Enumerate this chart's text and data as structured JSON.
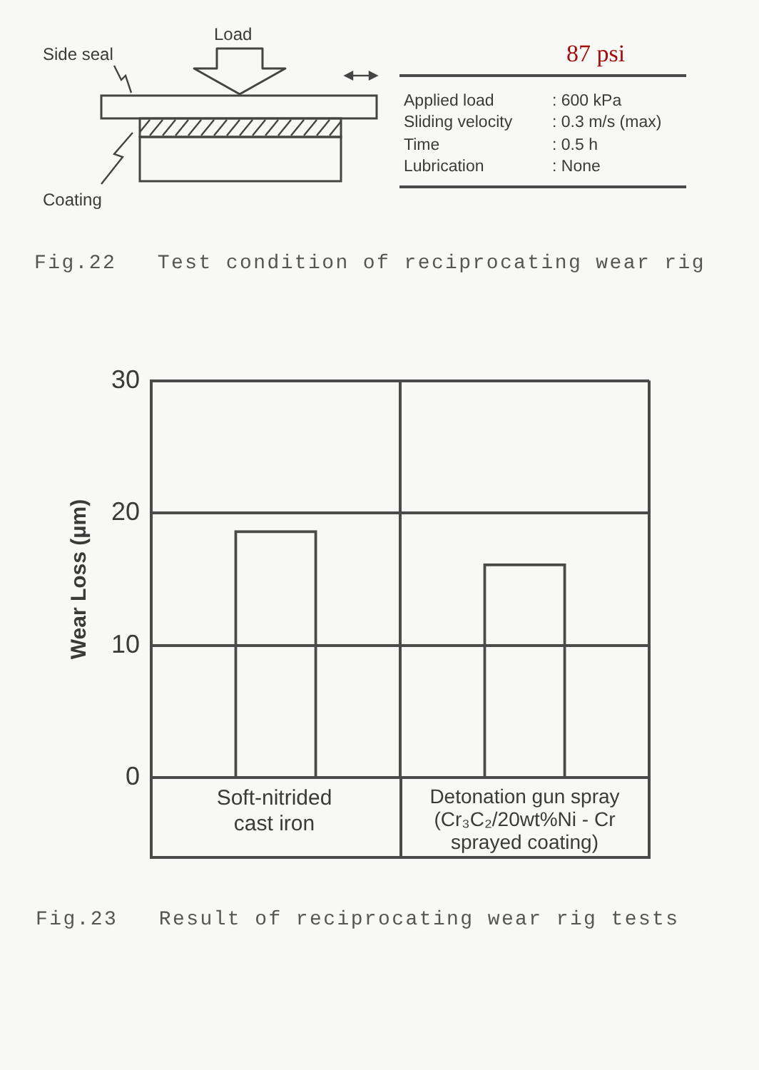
{
  "chart_data": {
    "type": "bar",
    "title": "Fig.23   Result of reciprocating wear rig tests",
    "ylabel": "Wear Loss (μm)",
    "categories": [
      "Soft-nitrided cast iron",
      "Detonation gun spray (Cr₃C₂/20wt%Ni - Cr sprayed coating)"
    ],
    "values": [
      18.7,
      16.2
    ],
    "color": "#4a4a4a",
    "ylim": [
      0,
      30
    ],
    "yticks": [
      0,
      10,
      20,
      30
    ],
    "grid": true,
    "annotations": [
      "Fig.22   Test condition of reciprocating wear rig",
      "Load",
      "Side seal",
      "Coating",
      "87 psi",
      "Applied load",
      ": 600 kPa",
      "Sliding velocity",
      ": 0.3 m/s (max)",
      "Time",
      ": 0.5 h",
      "Lubrication",
      ": None"
    ]
  }
}
